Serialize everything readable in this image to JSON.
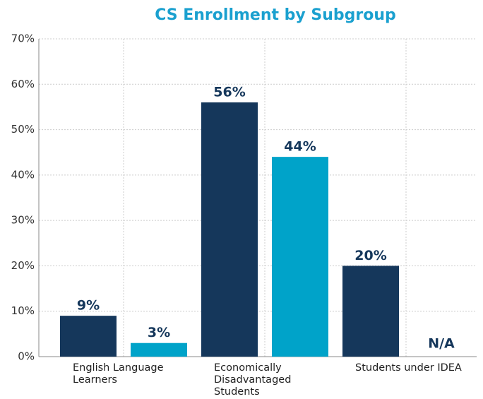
{
  "chart_data": {
    "type": "bar",
    "title": "CS Enrollment by Subgroup",
    "categories": [
      "English Language Learners",
      "Economically Disadvantaged Students",
      "Students under IDEA"
    ],
    "series": [
      {
        "color": "#15375b",
        "values": [
          9,
          56,
          20
        ],
        "value_labels": [
          "9%",
          "56%",
          "20%"
        ]
      },
      {
        "color": "#00a3c9",
        "values": [
          3,
          44,
          null
        ],
        "value_labels": [
          "3%",
          "44%",
          "N/A"
        ]
      }
    ],
    "ylim": [
      0,
      70
    ],
    "yticks": [
      {
        "value": 0,
        "label": "0%"
      },
      {
        "value": 10,
        "label": "10%"
      },
      {
        "value": 20,
        "label": "20%"
      },
      {
        "value": 30,
        "label": "30%"
      },
      {
        "value": 40,
        "label": "40%"
      },
      {
        "value": 50,
        "label": "50%"
      },
      {
        "value": 60,
        "label": "60%"
      },
      {
        "value": 70,
        "label": "70%"
      }
    ],
    "grid": true
  }
}
